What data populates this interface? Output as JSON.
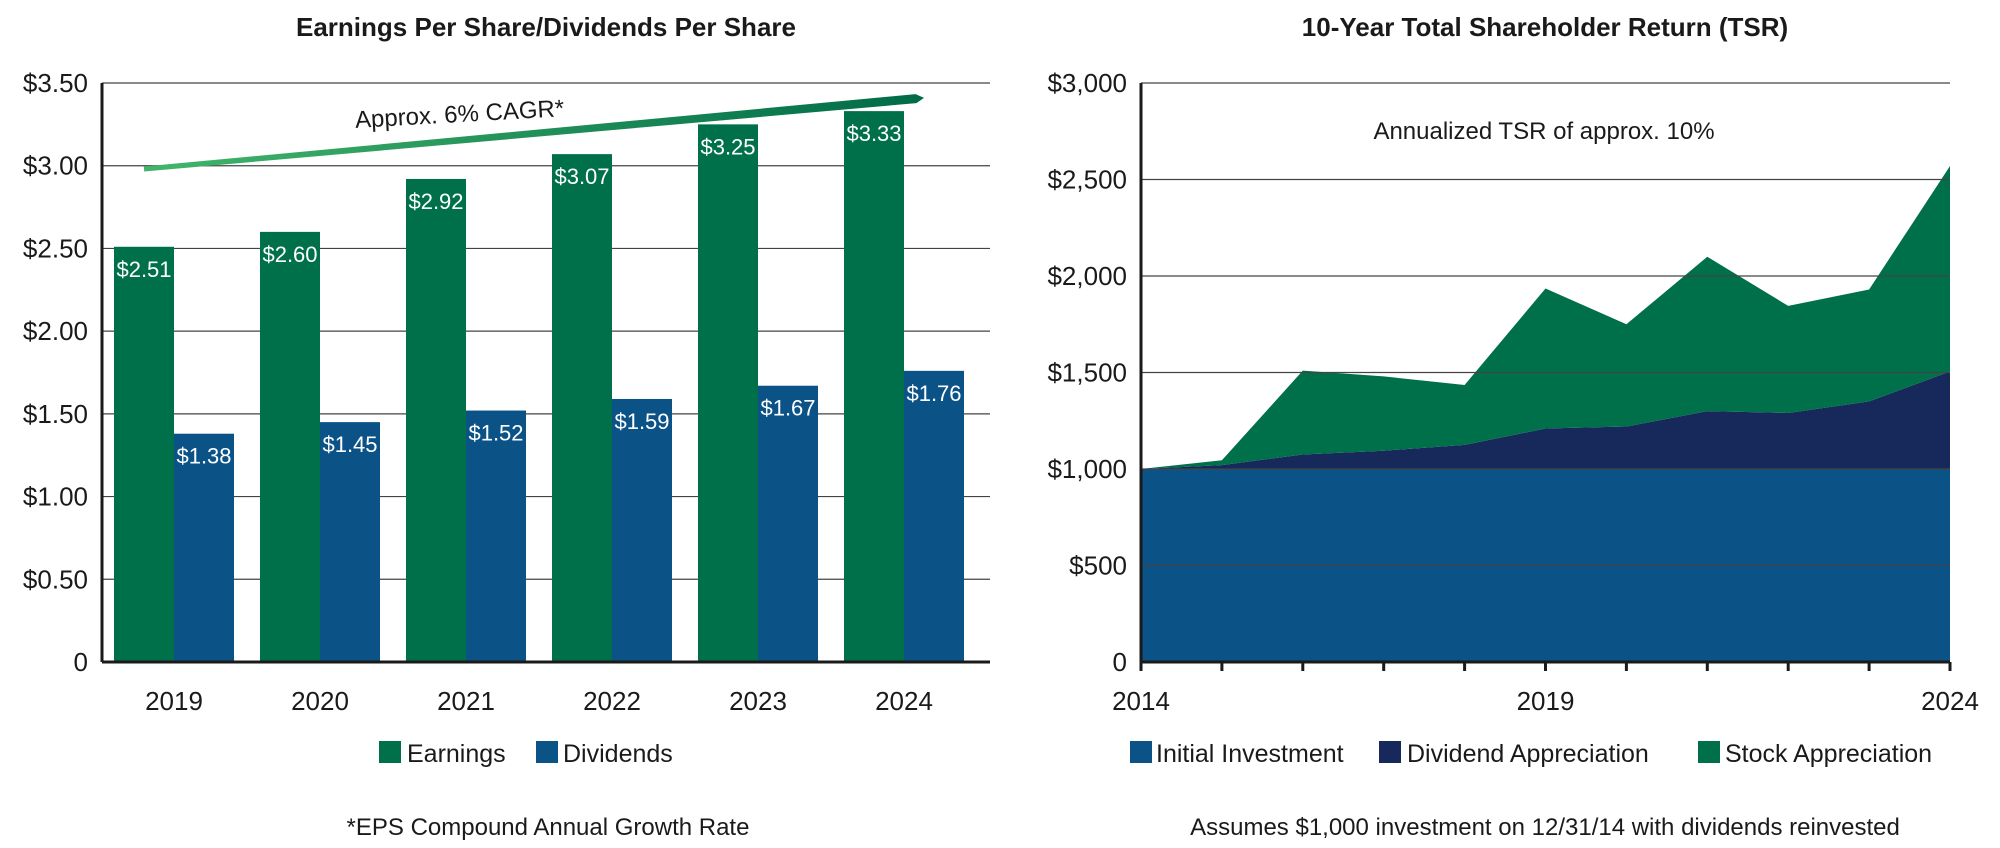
{
  "colors": {
    "earnings": "#00704A",
    "dividends": "#0B5287",
    "initial_investment": "#0B5287",
    "dividend_appreciation": "#17285A",
    "stock_appreciation": "#00704A",
    "cagr_light": "#43B56B",
    "cagr_dark": "#006B48",
    "grid": "#444444",
    "axis": "#1a1a1a"
  },
  "chart_data": [
    {
      "type": "bar",
      "title": "Earnings Per Share/Dividends Per Share",
      "categories": [
        "2019",
        "2020",
        "2021",
        "2022",
        "2023",
        "2024"
      ],
      "series": [
        {
          "name": "Earnings",
          "values": [
            2.51,
            2.6,
            2.92,
            3.07,
            3.25,
            3.33
          ],
          "labels": [
            "$2.51",
            "$2.60",
            "$2.92",
            "$3.07",
            "$3.25",
            "$3.33"
          ]
        },
        {
          "name": "Dividends",
          "values": [
            1.38,
            1.45,
            1.52,
            1.59,
            1.67,
            1.76
          ],
          "labels": [
            "$1.38",
            "$1.45",
            "$1.52",
            "$1.59",
            "$1.67",
            "$1.76"
          ]
        }
      ],
      "ylim": [
        0,
        3.5
      ],
      "yticks": [
        0,
        0.5,
        1.0,
        1.5,
        2.0,
        2.5,
        3.0,
        3.5
      ],
      "ytick_labels": [
        "0",
        "$0.50",
        "$1.00",
        "$1.50",
        "$2.00",
        "$2.50",
        "$3.00",
        "$3.50"
      ],
      "grid": true,
      "legend": [
        "Earnings",
        "Dividends"
      ],
      "legend_position": "bottom",
      "annotation": {
        "text": "Approx. 6% CAGR*",
        "trend_start": {
          "category_index": 0,
          "value": 2.98
        },
        "trend_end": {
          "category_index": 5,
          "value": 3.41
        }
      },
      "footnote": "*EPS Compound Annual Growth Rate"
    },
    {
      "type": "area",
      "stacked": true,
      "title": "10-Year Total Shareholder Return (TSR)",
      "x": [
        2014,
        2015,
        2016,
        2017,
        2018,
        2019,
        2020,
        2021,
        2022,
        2023,
        2024
      ],
      "series": [
        {
          "name": "Initial Investment",
          "values": [
            1000,
            1000,
            1000,
            1000,
            1000,
            1000,
            1000,
            1000,
            1000,
            1000,
            1000
          ]
        },
        {
          "name": "Dividend Appreciation",
          "values": [
            0,
            20,
            75,
            95,
            125,
            210,
            220,
            300,
            290,
            350,
            505
          ]
        },
        {
          "name": "Stock Appreciation",
          "values": [
            0,
            25,
            435,
            385,
            310,
            725,
            530,
            800,
            555,
            580,
            1065
          ]
        }
      ],
      "ylim": [
        0,
        3000
      ],
      "yticks": [
        0,
        500,
        1000,
        1500,
        2000,
        2500,
        3000
      ],
      "ytick_labels": [
        "0",
        "$500",
        "$1,000",
        "$1,500",
        "$2,000",
        "$2,500",
        "$3,000"
      ],
      "xtick_labels": [
        "2014",
        "2019",
        "2024"
      ],
      "xlim": [
        2014,
        2024
      ],
      "grid": true,
      "legend": [
        "Initial Investment",
        "Dividend Appreciation",
        "Stock Appreciation"
      ],
      "legend_position": "bottom",
      "annotation": {
        "text": "Annualized TSR of approx. 10%"
      },
      "footnote": "Assumes $1,000 investment on 12/31/14 with dividends reinvested"
    }
  ]
}
